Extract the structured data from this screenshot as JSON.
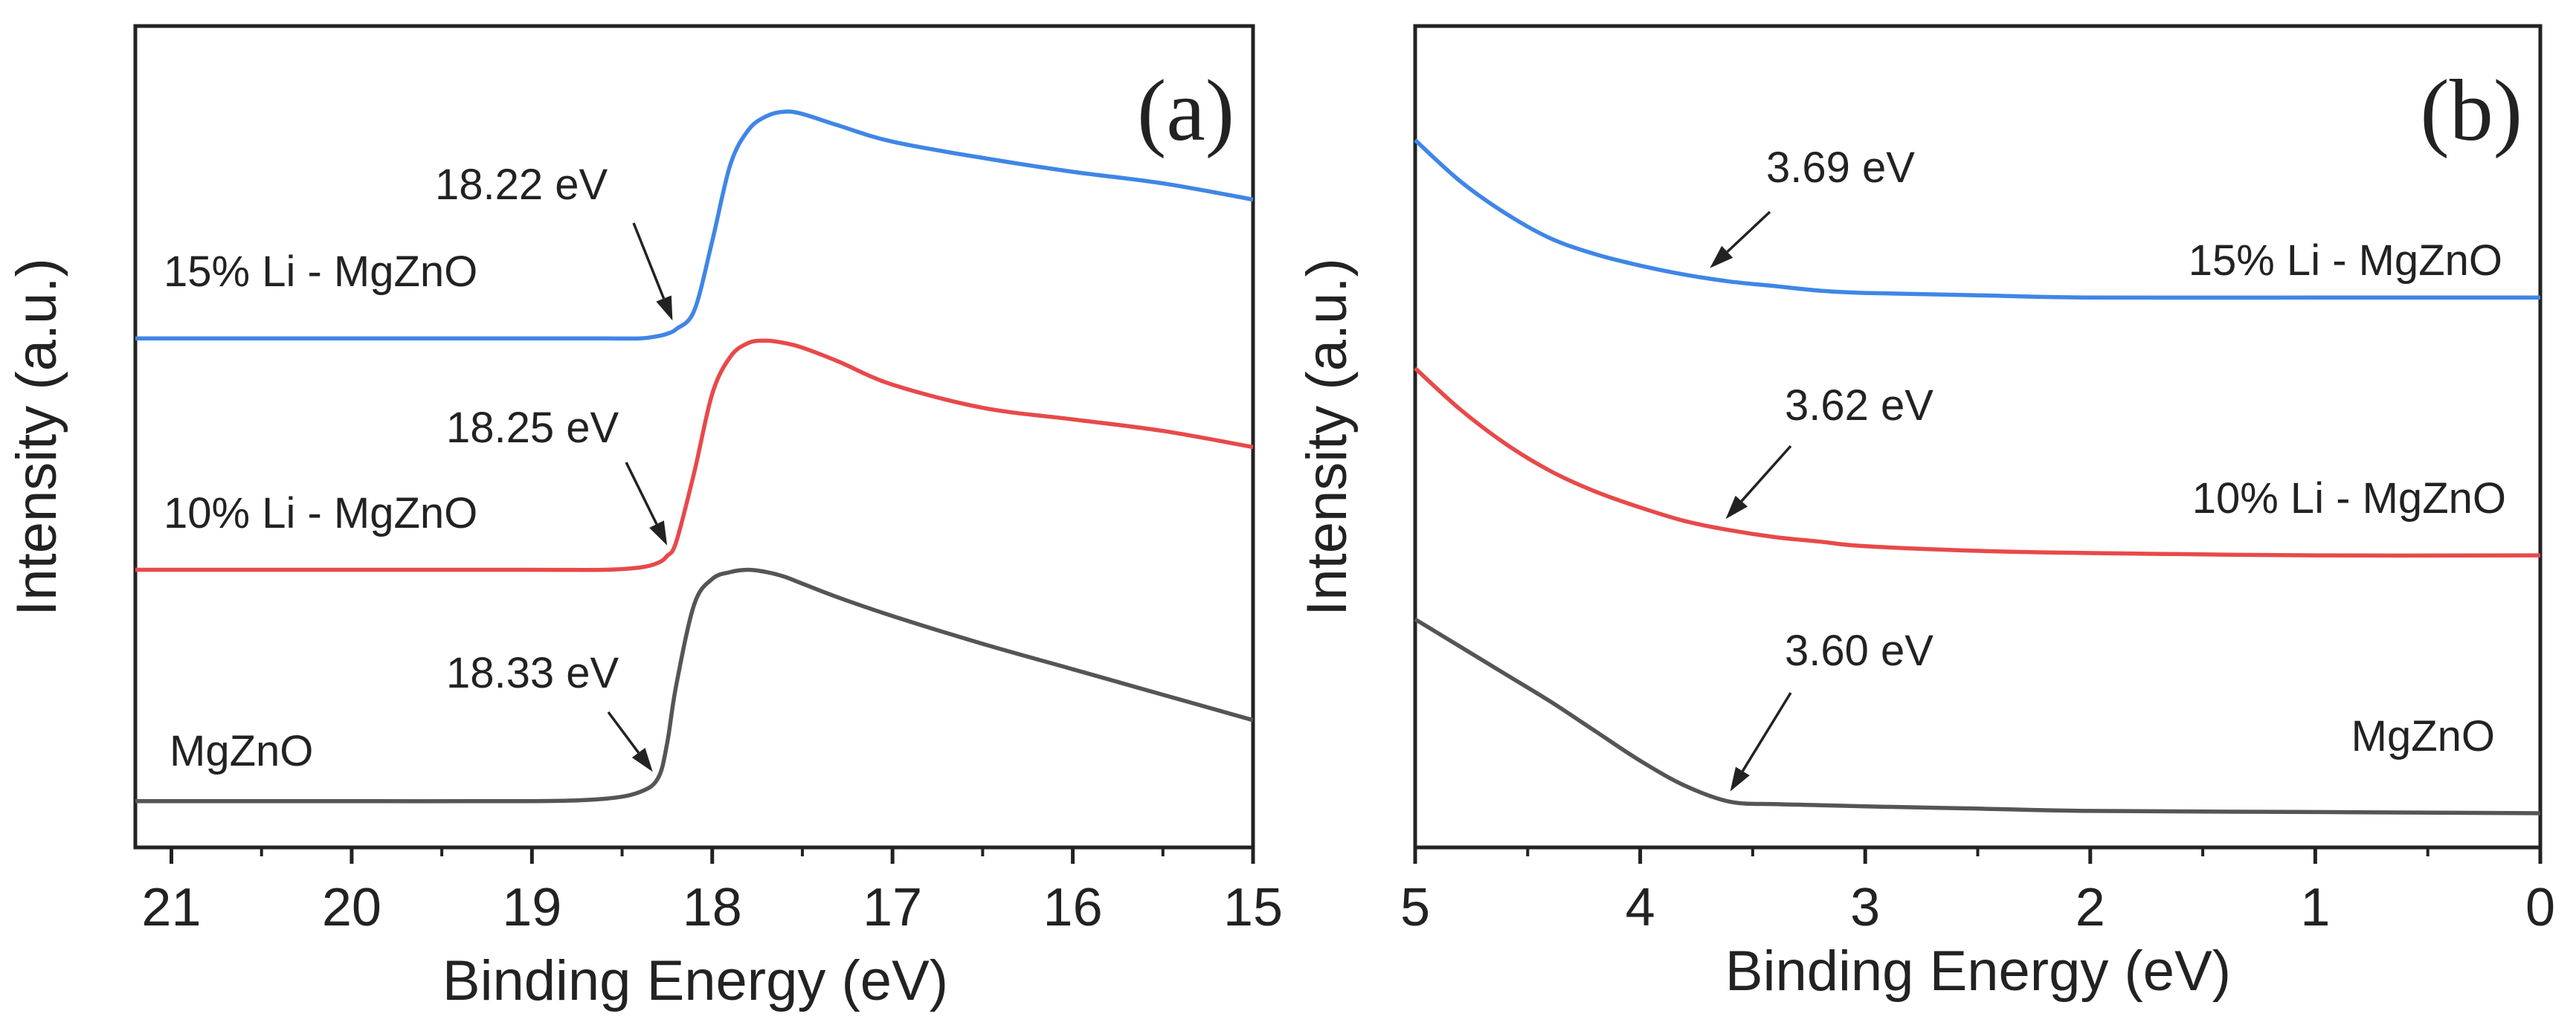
{
  "figure_colors": {
    "MgZnO": "#555555",
    "10% Li - MgZnO": "#e8494a",
    "15% Li - MgZnO": "#3f86e6",
    "axis": "#222222",
    "arrow": "#222222"
  },
  "chart_data": [
    {
      "type": "line",
      "panel_label": "(a)",
      "xlabel": "Binding Energy (eV)",
      "ylabel": "Intensity (a.u.)",
      "xlim": [
        21.2,
        15
      ],
      "x_reversed": true,
      "ylim": [
        0,
        3.55
      ],
      "yticks_shown": false,
      "xticks": [
        "21",
        "20",
        "19",
        "18",
        "17",
        "16",
        "15"
      ],
      "x": [
        21.2,
        21.0,
        20.0,
        19.0,
        18.6,
        18.4,
        18.3,
        18.25,
        18.2,
        18.1,
        18.0,
        17.9,
        17.8,
        17.7,
        17.6,
        17.5,
        17.3,
        17.0,
        16.5,
        16.0,
        15.5,
        15.0
      ],
      "series": [
        {
          "name": "MgZnO",
          "label": "MgZnO",
          "baseline": 0.2,
          "values": [
            0.2,
            0.2,
            0.2,
            0.2,
            0.21,
            0.24,
            0.3,
            0.45,
            0.7,
            1.05,
            1.16,
            1.19,
            1.2,
            1.19,
            1.17,
            1.14,
            1.08,
            1.0,
            0.88,
            0.77,
            0.66,
            0.55
          ],
          "annotation": {
            "text": "18.33 eV",
            "x": 18.33
          }
        },
        {
          "name": "10% Li - MgZnO",
          "label": "10% Li - MgZnO",
          "baseline": 1.2,
          "values": [
            1.2,
            1.2,
            1.2,
            1.2,
            1.2,
            1.21,
            1.23,
            1.26,
            1.32,
            1.62,
            1.96,
            2.12,
            2.18,
            2.19,
            2.18,
            2.16,
            2.1,
            2.0,
            1.9,
            1.85,
            1.8,
            1.73
          ],
          "annotation": {
            "text": "18.25 eV",
            "x": 18.25
          }
        },
        {
          "name": "15% Li - MgZnO",
          "label": "15% Li - MgZnO",
          "baseline": 2.2,
          "values": [
            2.2,
            2.2,
            2.2,
            2.2,
            2.2,
            2.2,
            2.21,
            2.22,
            2.24,
            2.32,
            2.62,
            2.95,
            3.1,
            3.16,
            3.18,
            3.17,
            3.12,
            3.05,
            2.98,
            2.92,
            2.87,
            2.8
          ],
          "annotation": {
            "text": "18.22 eV",
            "x": 18.22
          }
        }
      ]
    },
    {
      "type": "line",
      "panel_label": "(b)",
      "xlabel": "Binding Energy (eV)",
      "ylabel": "Intensity (a.u.)",
      "xlim": [
        5,
        0
      ],
      "x_reversed": true,
      "ylim": [
        0,
        3.6
      ],
      "yticks_shown": false,
      "xticks": [
        "5",
        "4",
        "3",
        "2",
        "1",
        "0"
      ],
      "x": [
        5.0,
        4.8,
        4.6,
        4.4,
        4.2,
        4.0,
        3.8,
        3.6,
        3.4,
        3.2,
        3.0,
        2.5,
        2.0,
        1.0,
        0.0
      ],
      "series": [
        {
          "name": "MgZnO",
          "label": "MgZnO",
          "values": [
            1.0,
            0.88,
            0.76,
            0.64,
            0.51,
            0.38,
            0.27,
            0.2,
            0.19,
            0.185,
            0.18,
            0.17,
            0.16,
            0.155,
            0.15
          ],
          "annotation": {
            "text": "3.60 eV",
            "x": 3.6
          }
        },
        {
          "name": "10% Li - MgZnO",
          "label": "10% Li - MgZnO",
          "values": [
            2.1,
            1.92,
            1.77,
            1.65,
            1.56,
            1.49,
            1.43,
            1.39,
            1.36,
            1.34,
            1.32,
            1.3,
            1.29,
            1.28,
            1.28
          ],
          "annotation": {
            "text": "3.62 eV",
            "x": 3.62
          }
        },
        {
          "name": "15% Li - MgZnO",
          "label": "15% Li - MgZnO",
          "values": [
            3.1,
            2.92,
            2.78,
            2.67,
            2.6,
            2.55,
            2.51,
            2.48,
            2.46,
            2.44,
            2.43,
            2.42,
            2.41,
            2.41,
            2.41
          ],
          "annotation": {
            "text": "3.69 eV",
            "x": 3.69
          }
        }
      ]
    }
  ]
}
